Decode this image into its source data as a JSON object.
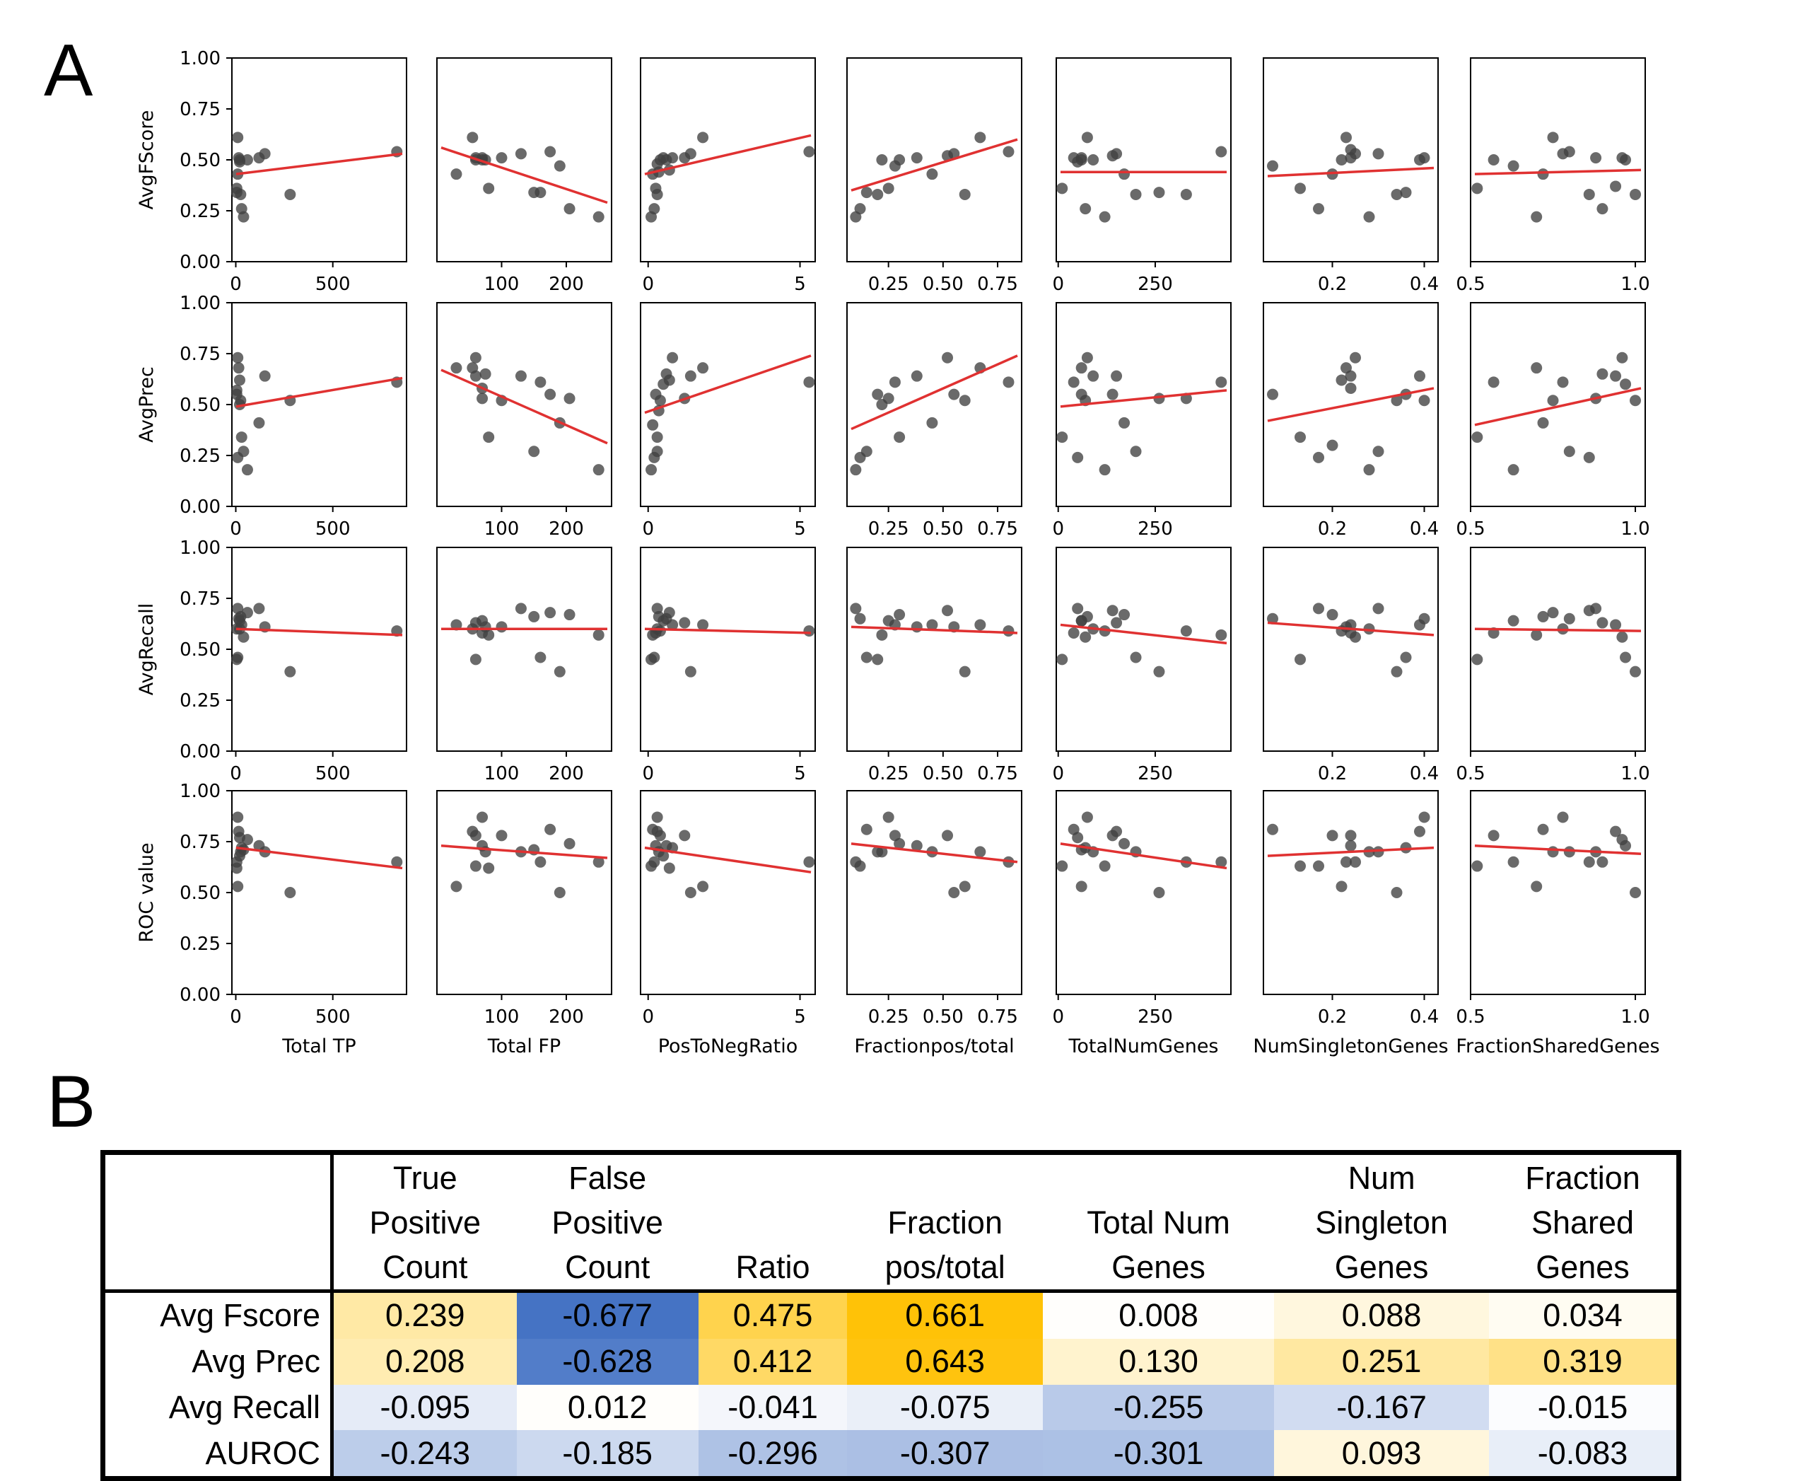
{
  "panel_labels": {
    "a": "A",
    "b": "B"
  },
  "chart_data": [
    {
      "type": "scatter",
      "panel": "A",
      "grid": false,
      "fit_line_color": "#e03131",
      "point_color": "#404040",
      "rows": [
        {
          "ylabel": "AvgFScore",
          "ylim": [
            0,
            1
          ],
          "yticks": [
            "0.00",
            "0.25",
            "0.50",
            "0.75",
            "1.00"
          ]
        },
        {
          "ylabel": "AvgPrec",
          "ylim": [
            0,
            1
          ],
          "yticks": [
            "0.00",
            "0.25",
            "0.50",
            "0.75",
            "1.00"
          ]
        },
        {
          "ylabel": "AvgRecall",
          "ylim": [
            0,
            1
          ],
          "yticks": [
            "0.00",
            "0.25",
            "0.50",
            "0.75",
            "1.00"
          ]
        },
        {
          "ylabel": "ROC value",
          "ylim": [
            0,
            1
          ],
          "yticks": [
            "0.00",
            "0.25",
            "0.50",
            "0.75",
            "1.00"
          ]
        }
      ],
      "columns": [
        {
          "xlabel": "Total TP",
          "xlim": [
            -20,
            880
          ],
          "xticks": [
            0,
            500
          ],
          "xticklabels": [
            "0",
            "500"
          ]
        },
        {
          "xlabel": "Total FP",
          "xlim": [
            0,
            270
          ],
          "xticks": [
            100,
            200
          ],
          "xticklabels": [
            "100",
            "200"
          ]
        },
        {
          "xlabel": "PosToNegRatio",
          "xlim": [
            -0.25,
            5.5
          ],
          "xticks": [
            0,
            5
          ],
          "xticklabels": [
            "0",
            "5"
          ]
        },
        {
          "xlabel": "Fractionpos/total",
          "xlim": [
            0.06,
            0.86
          ],
          "xticks": [
            0.25,
            0.5,
            0.75
          ],
          "xticklabels": [
            "0.25",
            "0.50",
            "0.75"
          ]
        },
        {
          "xlabel": "TotalNumGenes",
          "xlim": [
            -5,
            445
          ],
          "xticks": [
            0,
            250
          ],
          "xticklabels": [
            "0",
            "250"
          ]
        },
        {
          "xlabel": "NumSingletonGenes",
          "xlim": [
            0.05,
            0.43
          ],
          "xticks": [
            0.2,
            0.4
          ],
          "xticklabels": [
            "0.2",
            "0.4"
          ]
        },
        {
          "xlabel": "FractionSharedGenes",
          "xlim": [
            0.5,
            1.03
          ],
          "xticks": [
            0.5,
            1.0
          ],
          "xticklabels": [
            "0.5",
            "1.0"
          ]
        }
      ],
      "x_values": [
        [
          10,
          15,
          20,
          5,
          25,
          30,
          40,
          60,
          120,
          150,
          280,
          830,
          10,
          5,
          20
        ],
        [
          55,
          60,
          60,
          70,
          70,
          75,
          80,
          100,
          130,
          150,
          160,
          175,
          190,
          205,
          250,
          30
        ],
        [
          0.1,
          0.2,
          0.3,
          0.3,
          0.4,
          0.5,
          0.6,
          0.8,
          1.2,
          1.4,
          1.8,
          5.3,
          0.15,
          0.25,
          0.35,
          0.7
        ],
        [
          0.1,
          0.12,
          0.15,
          0.2,
          0.25,
          0.28,
          0.3,
          0.38,
          0.45,
          0.52,
          0.55,
          0.6,
          0.67,
          0.8,
          0.22
        ],
        [
          10,
          40,
          50,
          60,
          70,
          75,
          90,
          120,
          140,
          150,
          170,
          200,
          260,
          330,
          420,
          60
        ],
        [
          0.07,
          0.13,
          0.17,
          0.2,
          0.22,
          0.23,
          0.24,
          0.25,
          0.28,
          0.3,
          0.34,
          0.36,
          0.39,
          0.4,
          0.24
        ],
        [
          0.52,
          0.57,
          0.63,
          0.7,
          0.72,
          0.75,
          0.78,
          0.8,
          0.86,
          0.88,
          0.9,
          0.94,
          0.96,
          0.97,
          1.0
        ]
      ],
      "y_values": [
        [
          [
            0.61,
            0.51,
            0.5,
            0.36,
            0.33,
            0.26,
            0.22,
            0.5,
            0.51,
            0.53,
            0.33,
            0.54,
            0.43,
            0.34,
            0.49
          ],
          [
            0.61,
            0.51,
            0.5,
            0.5,
            0.51,
            0.5,
            0.36,
            0.51,
            0.53,
            0.34,
            0.34,
            0.54,
            0.47,
            0.26,
            0.22,
            0.43
          ],
          [
            0.22,
            0.26,
            0.33,
            0.48,
            0.5,
            0.51,
            0.5,
            0.51,
            0.51,
            0.53,
            0.61,
            0.54,
            0.43,
            0.36,
            0.44,
            0.45
          ],
          [
            0.22,
            0.26,
            0.34,
            0.33,
            0.36,
            0.47,
            0.5,
            0.51,
            0.43,
            0.52,
            0.53,
            0.33,
            0.61,
            0.54,
            0.5
          ],
          [
            0.36,
            0.51,
            0.49,
            0.51,
            0.26,
            0.61,
            0.5,
            0.22,
            0.52,
            0.53,
            0.43,
            0.33,
            0.34,
            0.33,
            0.54,
            0.5
          ],
          [
            0.47,
            0.36,
            0.26,
            0.43,
            0.5,
            0.61,
            0.51,
            0.53,
            0.22,
            0.53,
            0.33,
            0.34,
            0.5,
            0.51,
            0.55
          ],
          [
            0.36,
            0.5,
            0.47,
            0.22,
            0.43,
            0.61,
            0.53,
            0.54,
            0.33,
            0.51,
            0.26,
            0.37,
            0.51,
            0.5,
            0.33
          ]
        ],
        [
          [
            0.73,
            0.68,
            0.62,
            0.55,
            0.52,
            0.34,
            0.27,
            0.18,
            0.41,
            0.64,
            0.52,
            0.61,
            0.24,
            0.57,
            0.5
          ],
          [
            0.68,
            0.64,
            0.73,
            0.58,
            0.53,
            0.65,
            0.34,
            0.52,
            0.64,
            0.27,
            0.61,
            0.55,
            0.41,
            0.53,
            0.18,
            0.68
          ],
          [
            0.18,
            0.24,
            0.27,
            0.34,
            0.52,
            0.6,
            0.65,
            0.73,
            0.53,
            0.64,
            0.68,
            0.61,
            0.4,
            0.55,
            0.47,
            0.62
          ],
          [
            0.18,
            0.24,
            0.27,
            0.55,
            0.53,
            0.61,
            0.34,
            0.64,
            0.41,
            0.73,
            0.55,
            0.52,
            0.68,
            0.61,
            0.5
          ],
          [
            0.34,
            0.61,
            0.24,
            0.68,
            0.52,
            0.73,
            0.64,
            0.18,
            0.55,
            0.64,
            0.41,
            0.27,
            0.53,
            0.53,
            0.61,
            0.55
          ],
          [
            0.55,
            0.34,
            0.24,
            0.3,
            0.62,
            0.68,
            0.64,
            0.73,
            0.18,
            0.27,
            0.52,
            0.55,
            0.64,
            0.52,
            0.58
          ],
          [
            0.34,
            0.61,
            0.18,
            0.68,
            0.41,
            0.52,
            0.61,
            0.27,
            0.24,
            0.53,
            0.65,
            0.64,
            0.73,
            0.6,
            0.52
          ]
        ],
        [
          [
            0.7,
            0.65,
            0.6,
            0.45,
            0.66,
            0.62,
            0.56,
            0.68,
            0.7,
            0.61,
            0.39,
            0.59,
            0.46,
            0.6,
            0.64
          ],
          [
            0.6,
            0.63,
            0.45,
            0.58,
            0.64,
            0.61,
            0.57,
            0.61,
            0.7,
            0.66,
            0.46,
            0.68,
            0.39,
            0.67,
            0.57,
            0.62
          ],
          [
            0.45,
            0.46,
            0.6,
            0.7,
            0.59,
            0.64,
            0.65,
            0.62,
            0.63,
            0.39,
            0.62,
            0.59,
            0.57,
            0.58,
            0.66,
            0.68
          ],
          [
            0.7,
            0.65,
            0.46,
            0.45,
            0.64,
            0.62,
            0.67,
            0.61,
            0.62,
            0.69,
            0.61,
            0.39,
            0.62,
            0.59,
            0.57
          ],
          [
            0.45,
            0.58,
            0.7,
            0.64,
            0.56,
            0.66,
            0.6,
            0.59,
            0.69,
            0.63,
            0.67,
            0.46,
            0.39,
            0.59,
            0.57,
            0.64
          ],
          [
            0.65,
            0.45,
            0.7,
            0.67,
            0.59,
            0.61,
            0.58,
            0.56,
            0.6,
            0.7,
            0.39,
            0.46,
            0.62,
            0.65,
            0.62
          ],
          [
            0.45,
            0.58,
            0.64,
            0.57,
            0.66,
            0.68,
            0.6,
            0.65,
            0.69,
            0.7,
            0.63,
            0.62,
            0.56,
            0.46,
            0.39
          ]
        ],
        [
          [
            0.87,
            0.8,
            0.77,
            0.65,
            0.7,
            0.72,
            0.71,
            0.76,
            0.73,
            0.7,
            0.5,
            0.65,
            0.53,
            0.62,
            0.68
          ],
          [
            0.8,
            0.78,
            0.63,
            0.87,
            0.73,
            0.7,
            0.62,
            0.78,
            0.7,
            0.71,
            0.65,
            0.81,
            0.5,
            0.74,
            0.65,
            0.53
          ],
          [
            0.63,
            0.65,
            0.8,
            0.87,
            0.78,
            0.68,
            0.73,
            0.72,
            0.78,
            0.5,
            0.53,
            0.65,
            0.81,
            0.73,
            0.7,
            0.62
          ],
          [
            0.65,
            0.63,
            0.81,
            0.7,
            0.87,
            0.78,
            0.74,
            0.73,
            0.7,
            0.78,
            0.5,
            0.53,
            0.7,
            0.65,
            0.7
          ],
          [
            0.63,
            0.81,
            0.77,
            0.53,
            0.72,
            0.87,
            0.7,
            0.63,
            0.78,
            0.8,
            0.74,
            0.7,
            0.5,
            0.65,
            0.65,
            0.71
          ],
          [
            0.81,
            0.63,
            0.63,
            0.78,
            0.53,
            0.65,
            0.78,
            0.65,
            0.7,
            0.7,
            0.5,
            0.72,
            0.8,
            0.87,
            0.73
          ],
          [
            0.63,
            0.78,
            0.65,
            0.53,
            0.81,
            0.7,
            0.87,
            0.7,
            0.65,
            0.7,
            0.65,
            0.8,
            0.76,
            0.73,
            0.5
          ]
        ]
      ],
      "fit_lines": [
        [
          [
            0.43,
            0.53
          ],
          [
            0.56,
            0.29
          ],
          [
            0.43,
            0.62
          ],
          [
            0.35,
            0.6
          ],
          [
            0.44,
            0.44
          ],
          [
            0.42,
            0.46
          ],
          [
            0.43,
            0.45
          ]
        ],
        [
          [
            0.49,
            0.63
          ],
          [
            0.67,
            0.31
          ],
          [
            0.46,
            0.74
          ],
          [
            0.38,
            0.74
          ],
          [
            0.49,
            0.57
          ],
          [
            0.42,
            0.58
          ],
          [
            0.4,
            0.58
          ]
        ],
        [
          [
            0.6,
            0.57
          ],
          [
            0.6,
            0.6
          ],
          [
            0.6,
            0.58
          ],
          [
            0.61,
            0.58
          ],
          [
            0.62,
            0.53
          ],
          [
            0.63,
            0.57
          ],
          [
            0.6,
            0.59
          ]
        ],
        [
          [
            0.72,
            0.62
          ],
          [
            0.73,
            0.67
          ],
          [
            0.72,
            0.6
          ],
          [
            0.74,
            0.65
          ],
          [
            0.74,
            0.62
          ],
          [
            0.68,
            0.72
          ],
          [
            0.73,
            0.69
          ]
        ]
      ]
    },
    {
      "type": "table",
      "panel": "B",
      "columns": [
        "True\nPositive\nCount",
        "False\nPositive\nCount",
        "Ratio",
        "Fraction\npos/total",
        "Total Num\nGenes",
        "Num\nSingleton\nGenes",
        "Fraction\nShared\nGenes"
      ],
      "rows": [
        {
          "label": "Avg Fscore",
          "values": [
            "0.239",
            "-0.677",
            "0.475",
            "0.661",
            "0.008",
            "0.088",
            "0.034"
          ]
        },
        {
          "label": "Avg Prec",
          "values": [
            "0.208",
            "-0.628",
            "0.412",
            "0.643",
            "0.130",
            "0.251",
            "0.319"
          ]
        },
        {
          "label": "Avg Recall",
          "values": [
            "-0.095",
            "0.012",
            "-0.041",
            "-0.075",
            "-0.255",
            "-0.167",
            "-0.015"
          ]
        },
        {
          "label": "AUROC",
          "values": [
            "-0.243",
            "-0.185",
            "-0.296",
            "-0.307",
            "-0.301",
            "0.093",
            "-0.083"
          ]
        }
      ],
      "positive_color": "#ffc000",
      "negative_color": "#4472c4",
      "color_scale_max": 0.68
    }
  ]
}
